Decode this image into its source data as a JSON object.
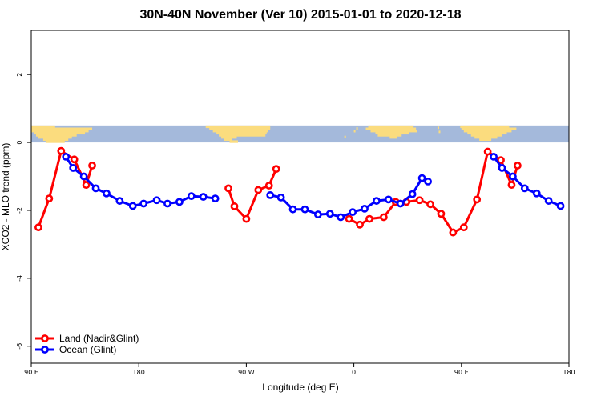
{
  "title": "30N-40N November (Ver 10)   2015-01-01 to 2020-12-18",
  "chart_data": {
    "type": "line",
    "title": "30N-40N November (Ver 10)   2015-01-01 to 2020-12-18",
    "xlabel": "Longitude (deg E)",
    "ylabel": "XCO2 - MLO trend (ppm)",
    "xlim": [
      90,
      540
    ],
    "ylim": [
      -6.5,
      3.3
    ],
    "x_ticks": [
      {
        "value": 90,
        "label": "90 E"
      },
      {
        "value": 180,
        "label": "180"
      },
      {
        "value": 270,
        "label": "90 W"
      },
      {
        "value": 360,
        "label": "0"
      },
      {
        "value": 450,
        "label": "90 E"
      },
      {
        "value": 540,
        "label": "180"
      }
    ],
    "y_ticks": [
      {
        "value": 2,
        "label": "2"
      },
      {
        "value": 0,
        "label": "0"
      },
      {
        "value": -2,
        "label": "-2"
      },
      {
        "value": -4,
        "label": "-4"
      },
      {
        "value": -6,
        "label": "-6"
      }
    ],
    "land_strip": {
      "ymin": 0,
      "ymax": 0.5,
      "ocean_color": "#A4B9DB",
      "land_color": "#FBDC7E"
    },
    "series": [
      {
        "name": "Land (Nadir&Glint)",
        "color": "#FF0000",
        "segments": [
          [
            [
              96,
              -2.5
            ],
            [
              105,
              -1.65
            ],
            [
              115,
              -0.25
            ],
            [
              126,
              -0.5
            ],
            [
              136,
              -1.25
            ],
            [
              141,
              -0.68
            ]
          ],
          [
            [
              255,
              -1.35
            ],
            [
              260,
              -1.88
            ],
            [
              270,
              -2.25
            ],
            [
              280,
              -1.4
            ],
            [
              289,
              -1.27
            ],
            [
              295,
              -0.78
            ]
          ],
          [
            [
              356,
              -2.25
            ],
            [
              365,
              -2.42
            ],
            [
              373,
              -2.25
            ],
            [
              385,
              -2.2
            ],
            [
              395,
              -1.75
            ],
            [
              404,
              -1.75
            ],
            [
              415,
              -1.7
            ],
            [
              424,
              -1.82
            ],
            [
              433,
              -2.1
            ],
            [
              443,
              -2.65
            ],
            [
              452,
              -2.5
            ],
            [
              463,
              -1.68
            ],
            [
              472,
              -0.27
            ],
            [
              483,
              -0.52
            ],
            [
              492,
              -1.25
            ],
            [
              497,
              -0.68
            ]
          ]
        ]
      },
      {
        "name": "Ocean (Glint)",
        "color": "#0000FF",
        "segments": [
          [
            [
              119,
              -0.42
            ],
            [
              125,
              -0.75
            ],
            [
              134,
              -1.0
            ],
            [
              144,
              -1.35
            ],
            [
              153,
              -1.5
            ],
            [
              164,
              -1.72
            ],
            [
              175,
              -1.87
            ],
            [
              184,
              -1.8
            ],
            [
              195,
              -1.7
            ],
            [
              204,
              -1.8
            ],
            [
              214,
              -1.75
            ],
            [
              224,
              -1.58
            ],
            [
              234,
              -1.6
            ],
            [
              244,
              -1.65
            ]
          ],
          [
            [
              290,
              -1.55
            ],
            [
              299,
              -1.62
            ],
            [
              309,
              -1.97
            ],
            [
              319,
              -1.97
            ],
            [
              330,
              -2.12
            ],
            [
              340,
              -2.1
            ],
            [
              349,
              -2.2
            ],
            [
              359,
              -2.05
            ],
            [
              369,
              -1.95
            ],
            [
              379,
              -1.72
            ],
            [
              389,
              -1.68
            ],
            [
              399,
              -1.8
            ],
            [
              409,
              -1.52
            ],
            [
              417,
              -1.05
            ],
            [
              422,
              -1.15
            ]
          ],
          [
            [
              477,
              -0.42
            ],
            [
              484,
              -0.75
            ],
            [
              493,
              -1.0
            ],
            [
              503,
              -1.35
            ],
            [
              513,
              -1.5
            ],
            [
              523,
              -1.72
            ],
            [
              533,
              -1.87
            ]
          ]
        ]
      }
    ],
    "legend": {
      "position": "bottom-left"
    }
  }
}
